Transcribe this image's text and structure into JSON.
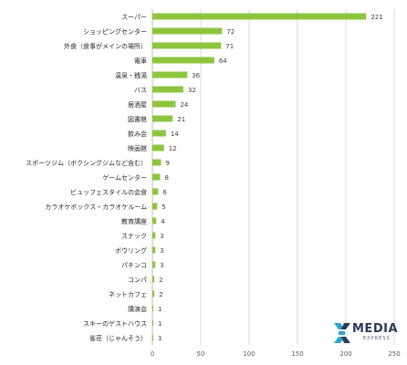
{
  "chart_data": {
    "type": "bar",
    "orientation": "horizontal",
    "categories": [
      "スーパー",
      "ショッピングセンター",
      "外食（食事がメインの場所）",
      "電車",
      "温泉・銭湯",
      "バス",
      "居酒屋",
      "図書館",
      "飲み会",
      "映画館",
      "スポーツジム（ボクシングジムなど含む）",
      "ゲームセンター",
      "ビュッフェスタイルの会食",
      "カラオケボックス・カラオケルーム",
      "教育講座",
      "スナック",
      "ボウリング",
      "パチンコ",
      "コンパ",
      "ネットカフェ",
      "講演会",
      "スキーのゲストハウス",
      "雀荘（じゃんそう）"
    ],
    "values": [
      221,
      72,
      71,
      64,
      36,
      32,
      24,
      21,
      14,
      12,
      9,
      8,
      6,
      5,
      4,
      3,
      3,
      3,
      2,
      2,
      1,
      1,
      1
    ],
    "xlim": [
      0,
      250
    ],
    "xticks": [
      0,
      50,
      100,
      150,
      200,
      250
    ],
    "grid": true,
    "bar_color": "#8cc63f",
    "title": "",
    "xlabel": "",
    "ylabel": ""
  },
  "logo": {
    "text": "MEDIA",
    "subtext": "EXPRESS",
    "colors": {
      "blue": "#2b3a57",
      "teal": "#2ca7c9"
    }
  }
}
